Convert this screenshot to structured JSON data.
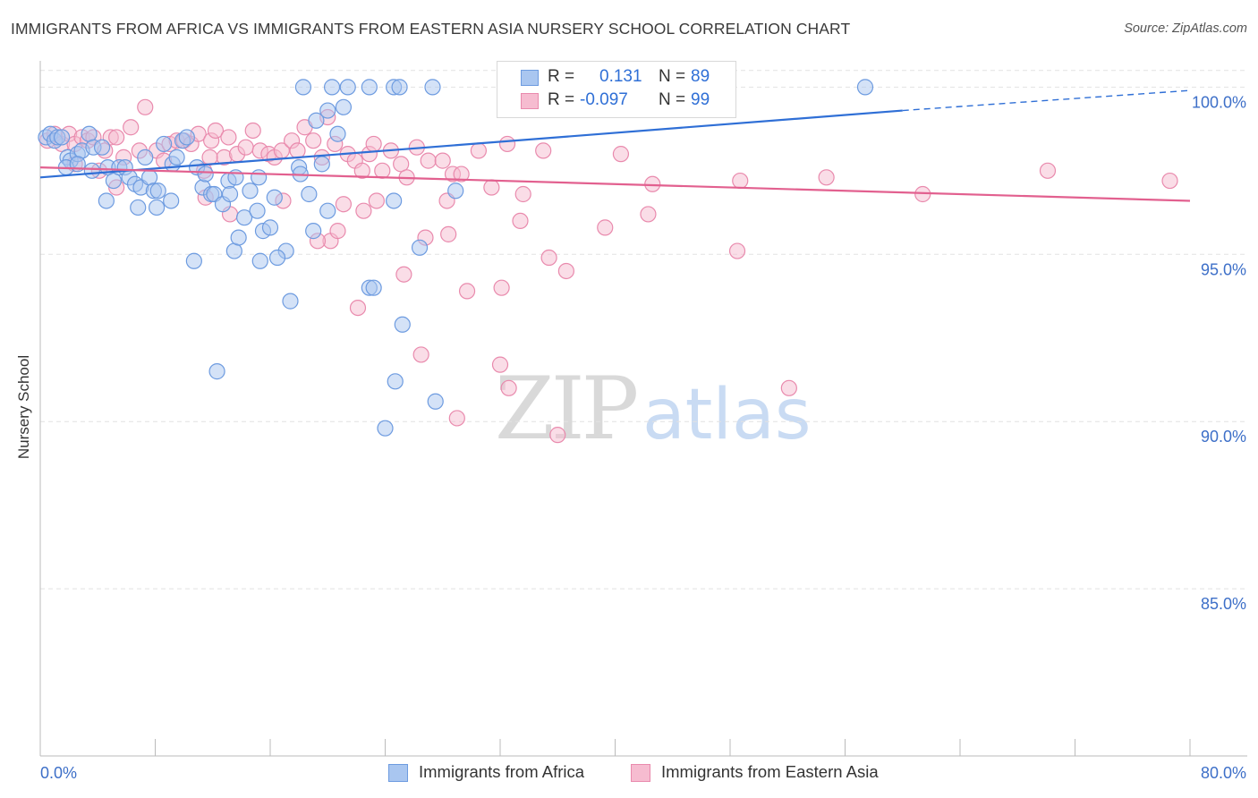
{
  "title": "IMMIGRANTS FROM AFRICA VS IMMIGRANTS FROM EASTERN ASIA NURSERY SCHOOL CORRELATION CHART",
  "source": "Source: ZipAtlas.com",
  "watermark": {
    "zip": "ZIP",
    "atlas": "atlas"
  },
  "legend": {
    "rows": [
      {
        "r_label": "R =",
        "r_value": "0.131",
        "n_label": "N =",
        "n_value": "89"
      },
      {
        "r_label": "R =",
        "r_value": "-0.097",
        "n_label": "N =",
        "n_value": "99"
      }
    ]
  },
  "colors": {
    "blue_fill": "#a9c6f0",
    "blue_stroke": "#6d9be0",
    "blue_line": "#2f6fd6",
    "pink_fill": "#f6bcd0",
    "pink_stroke": "#e98aad",
    "pink_line": "#e2608f",
    "tick_label": "#3d6fc8",
    "grid": "#e2e2e2"
  },
  "chart_data": {
    "type": "scatter",
    "title": "IMMIGRANTS FROM AFRICA VS IMMIGRANTS FROM EASTERN ASIA NURSERY SCHOOL CORRELATION CHART",
    "xlabel": "",
    "ylabel": "Nursery School",
    "xlim": [
      0,
      80
    ],
    "ylim": [
      80.0,
      101.0
    ],
    "x_tick_labels": [
      "0.0%",
      "80.0%"
    ],
    "y_tick_values": [
      100.0,
      95.0,
      90.0,
      85.0
    ],
    "y_tick_labels": [
      "100.0%",
      "95.0%",
      "90.0%",
      "85.0%"
    ],
    "grid": "horizontal dashed",
    "legend_position": "bottom",
    "series": [
      {
        "name": "Immigrants from Africa",
        "color": "#a9c6f0",
        "trend": {
          "x": [
            0,
            60
          ],
          "y": [
            97.3,
            99.3
          ],
          "dashed_extension_to": [
            80,
            99.9
          ]
        },
        "points": [
          [
            0.4,
            98.5
          ],
          [
            0.7,
            98.6
          ],
          [
            1.0,
            98.4
          ],
          [
            1.2,
            98.5
          ],
          [
            1.5,
            98.5
          ],
          [
            1.9,
            97.9
          ],
          [
            2.1,
            97.8
          ],
          [
            2.6,
            98.0
          ],
          [
            2.9,
            98.1
          ],
          [
            3.4,
            98.6
          ],
          [
            3.7,
            98.2
          ],
          [
            4.3,
            98.2
          ],
          [
            4.7,
            97.6
          ],
          [
            5.1,
            97.2
          ],
          [
            5.5,
            97.6
          ],
          [
            5.9,
            97.6
          ],
          [
            6.2,
            97.3
          ],
          [
            6.6,
            97.1
          ],
          [
            7.0,
            97.0
          ],
          [
            7.3,
            97.9
          ],
          [
            7.6,
            97.3
          ],
          [
            7.9,
            96.9
          ],
          [
            8.2,
            96.9
          ],
          [
            8.6,
            98.3
          ],
          [
            9.2,
            97.7
          ],
          [
            9.5,
            97.9
          ],
          [
            9.9,
            98.4
          ],
          [
            10.2,
            98.5
          ],
          [
            10.9,
            97.6
          ],
          [
            11.3,
            97.0
          ],
          [
            11.9,
            96.8
          ],
          [
            12.1,
            96.8
          ],
          [
            12.7,
            96.5
          ],
          [
            13.1,
            97.2
          ],
          [
            13.5,
            95.1
          ],
          [
            13.8,
            95.5
          ],
          [
            14.2,
            96.1
          ],
          [
            14.6,
            96.9
          ],
          [
            15.1,
            96.3
          ],
          [
            15.3,
            94.8
          ],
          [
            15.5,
            95.7
          ],
          [
            16.0,
            95.8
          ],
          [
            16.3,
            96.7
          ],
          [
            17.1,
            95.1
          ],
          [
            17.4,
            93.6
          ],
          [
            18.0,
            97.6
          ],
          [
            18.1,
            97.4
          ],
          [
            18.7,
            96.8
          ],
          [
            19.2,
            99.0
          ],
          [
            19.6,
            97.7
          ],
          [
            20.0,
            99.3
          ],
          [
            20.7,
            98.6
          ],
          [
            21.1,
            99.4
          ],
          [
            22.9,
            94.0
          ],
          [
            23.2,
            94.0
          ],
          [
            24.6,
            96.6
          ],
          [
            24.7,
            91.2
          ],
          [
            25.2,
            92.9
          ],
          [
            26.4,
            95.2
          ],
          [
            27.5,
            90.6
          ],
          [
            28.9,
            96.9
          ],
          [
            18.3,
            100.0
          ],
          [
            20.3,
            100.0
          ],
          [
            21.4,
            100.0
          ],
          [
            22.9,
            100.0
          ],
          [
            24.6,
            100.0
          ],
          [
            25.0,
            100.0
          ],
          [
            27.3,
            100.0
          ],
          [
            34.4,
            100.0
          ],
          [
            37.4,
            100.0
          ],
          [
            38.1,
            100.0
          ],
          [
            57.4,
            100.0
          ],
          [
            10.7,
            94.8
          ],
          [
            12.3,
            91.5
          ],
          [
            16.5,
            94.9
          ],
          [
            24.0,
            89.8
          ],
          [
            3.6,
            97.5
          ],
          [
            8.1,
            96.4
          ],
          [
            9.1,
            96.6
          ],
          [
            13.6,
            97.3
          ],
          [
            15.2,
            97.3
          ],
          [
            1.8,
            97.6
          ],
          [
            4.6,
            96.6
          ],
          [
            6.8,
            96.4
          ],
          [
            11.5,
            97.4
          ],
          [
            13.2,
            96.8
          ],
          [
            20.0,
            96.3
          ],
          [
            19.0,
            95.7
          ],
          [
            2.6,
            97.7
          ]
        ]
      },
      {
        "name": "Immigrants from Eastern Asia",
        "color": "#f6bcd0",
        "trend": {
          "x": [
            0,
            80
          ],
          "y": [
            97.6,
            96.6
          ]
        },
        "points": [
          [
            0.5,
            98.4
          ],
          [
            1.0,
            98.6
          ],
          [
            1.5,
            98.3
          ],
          [
            2.0,
            98.6
          ],
          [
            2.4,
            98.3
          ],
          [
            2.9,
            98.5
          ],
          [
            3.3,
            98.4
          ],
          [
            3.7,
            98.5
          ],
          [
            4.1,
            97.5
          ],
          [
            4.5,
            98.1
          ],
          [
            4.9,
            98.5
          ],
          [
            5.3,
            98.5
          ],
          [
            5.8,
            97.9
          ],
          [
            6.3,
            98.8
          ],
          [
            6.9,
            98.1
          ],
          [
            7.3,
            99.4
          ],
          [
            8.1,
            98.1
          ],
          [
            8.6,
            97.8
          ],
          [
            9.0,
            98.3
          ],
          [
            9.5,
            98.4
          ],
          [
            10.0,
            98.4
          ],
          [
            10.5,
            98.3
          ],
          [
            11.0,
            98.6
          ],
          [
            11.4,
            97.5
          ],
          [
            11.9,
            98.4
          ],
          [
            12.2,
            98.7
          ],
          [
            12.8,
            97.9
          ],
          [
            13.1,
            98.5
          ],
          [
            13.7,
            98.0
          ],
          [
            14.3,
            98.2
          ],
          [
            14.8,
            98.7
          ],
          [
            15.3,
            98.1
          ],
          [
            15.9,
            98.0
          ],
          [
            16.3,
            97.9
          ],
          [
            16.8,
            98.1
          ],
          [
            17.5,
            98.4
          ],
          [
            17.9,
            98.1
          ],
          [
            18.4,
            98.8
          ],
          [
            19.0,
            98.4
          ],
          [
            19.6,
            97.9
          ],
          [
            20.0,
            99.1
          ],
          [
            20.5,
            98.3
          ],
          [
            21.1,
            96.5
          ],
          [
            21.4,
            98.0
          ],
          [
            21.9,
            97.8
          ],
          [
            22.4,
            97.5
          ],
          [
            22.9,
            98.0
          ],
          [
            23.2,
            98.3
          ],
          [
            23.8,
            97.5
          ],
          [
            24.4,
            98.1
          ],
          [
            25.1,
            97.7
          ],
          [
            25.5,
            97.3
          ],
          [
            26.2,
            98.2
          ],
          [
            27.0,
            97.8
          ],
          [
            28.0,
            97.8
          ],
          [
            28.7,
            97.4
          ],
          [
            29.3,
            97.4
          ],
          [
            30.5,
            98.1
          ],
          [
            31.4,
            97.0
          ],
          [
            32.5,
            98.3
          ],
          [
            33.6,
            96.8
          ],
          [
            35.0,
            98.1
          ],
          [
            36.6,
            94.5
          ],
          [
            39.3,
            95.8
          ],
          [
            42.3,
            96.2
          ],
          [
            48.7,
            97.2
          ],
          [
            54.7,
            97.3
          ],
          [
            61.4,
            96.8
          ],
          [
            70.1,
            97.5
          ],
          [
            78.6,
            97.2
          ],
          [
            2.4,
            97.7
          ],
          [
            5.3,
            97.0
          ],
          [
            11.5,
            96.7
          ],
          [
            16.9,
            96.6
          ],
          [
            20.2,
            95.4
          ],
          [
            23.4,
            96.6
          ],
          [
            25.3,
            94.4
          ],
          [
            26.8,
            95.5
          ],
          [
            28.4,
            95.6
          ],
          [
            29.7,
            93.9
          ],
          [
            32.1,
            94.0
          ],
          [
            33.4,
            96.0
          ],
          [
            19.3,
            95.4
          ],
          [
            20.7,
            95.7
          ],
          [
            22.1,
            93.4
          ],
          [
            26.5,
            92.0
          ],
          [
            29.0,
            90.1
          ],
          [
            32.0,
            91.7
          ],
          [
            32.6,
            91.0
          ],
          [
            36.0,
            89.6
          ],
          [
            48.5,
            95.1
          ],
          [
            52.1,
            91.0
          ],
          [
            22.5,
            96.3
          ],
          [
            13.2,
            96.2
          ],
          [
            28.3,
            96.6
          ],
          [
            35.4,
            94.9
          ],
          [
            40.4,
            98.0
          ],
          [
            11.8,
            97.9
          ],
          [
            42.6,
            97.1
          ]
        ]
      }
    ]
  }
}
